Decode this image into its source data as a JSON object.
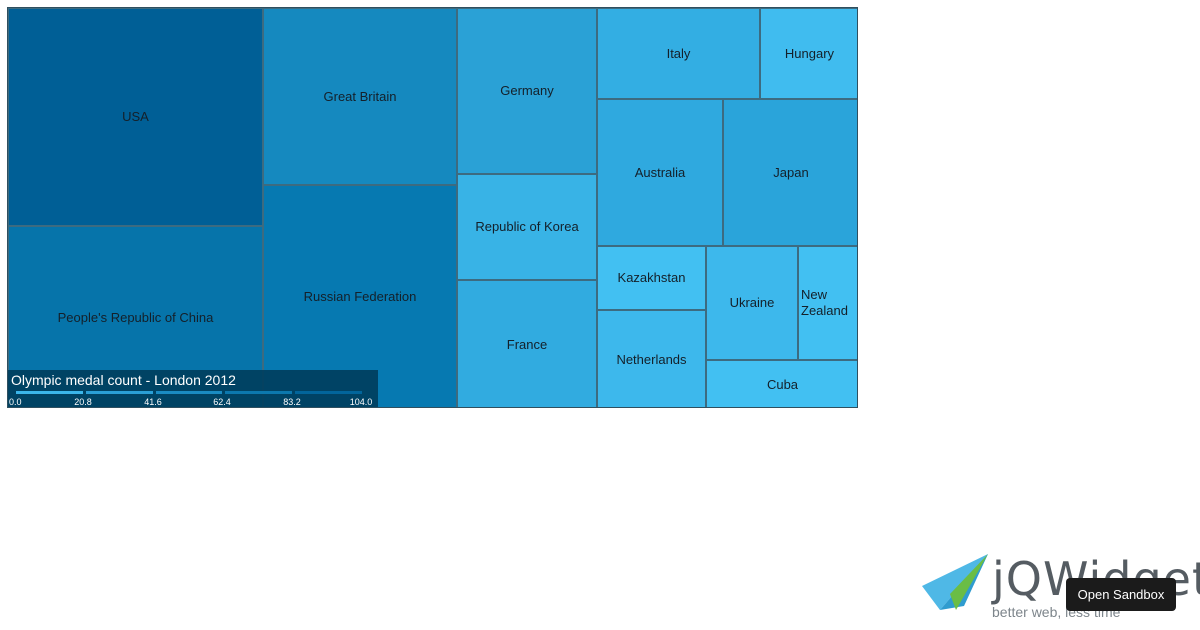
{
  "chart_data": {
    "type": "treemap",
    "title": "Olympic medal count - London 2012",
    "items": [
      {
        "label": "USA",
        "value": 104,
        "color": "#005f96"
      },
      {
        "label": "People's Republic of China",
        "value": 88,
        "color": "#0674aa"
      },
      {
        "label": "Great Britain",
        "value": 65,
        "color": "#1589bf"
      },
      {
        "label": "Russian Federation",
        "value": 82,
        "color": "#0679b1"
      },
      {
        "label": "Germany",
        "value": 44,
        "color": "#2aa1d6"
      },
      {
        "label": "Republic of Korea",
        "value": 28,
        "color": "#38b3e6"
      },
      {
        "label": "France",
        "value": 34,
        "color": "#31abe0"
      },
      {
        "label": "Italy",
        "value": 28,
        "color": "#33aee3"
      },
      {
        "label": "Hungary",
        "value": 17,
        "color": "#40bcef"
      },
      {
        "label": "Australia",
        "value": 35,
        "color": "#2fa9df"
      },
      {
        "label": "Japan",
        "value": 38,
        "color": "#2aa4da"
      },
      {
        "label": "Kazakhstan",
        "value": 13,
        "color": "#42c0f2"
      },
      {
        "label": "Netherlands",
        "value": 20,
        "color": "#3db8ec"
      },
      {
        "label": "Ukraine",
        "value": 20,
        "color": "#3db8ec"
      },
      {
        "label": "New Zealand",
        "value": 13,
        "color": "#42c0f2"
      },
      {
        "label": "Cuba",
        "value": 14,
        "color": "#42c0f2"
      }
    ],
    "legend": {
      "ticks": [
        "0.0",
        "20.8",
        "41.6",
        "62.4",
        "83.2",
        "104.0"
      ],
      "colors": [
        "#3bb6ea",
        "#2a9fd6",
        "#1a8bc2",
        "#0c78ae",
        "#02659b"
      ]
    }
  },
  "promo": {
    "brand_prefix": "jQ",
    "brand_suffix": "Widgets",
    "tagline": "better web, less time",
    "button_label": "Open Sandbox"
  }
}
